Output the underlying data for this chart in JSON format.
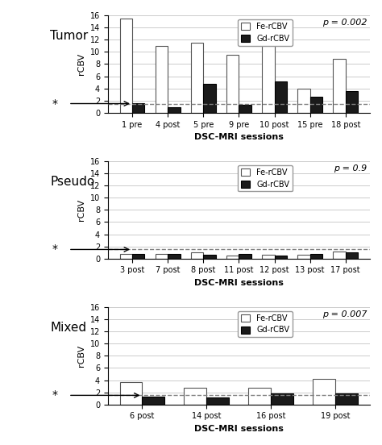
{
  "tumor": {
    "categories": [
      "1 pre",
      "4 post",
      "5 pre",
      "9 pre",
      "10 post",
      "15 pre",
      "18 post"
    ],
    "fe_rcbv": [
      15.5,
      11.0,
      11.5,
      9.5,
      11.5,
      4.0,
      8.8
    ],
    "gd_rcbv": [
      1.6,
      0.9,
      4.8,
      1.3,
      5.2,
      2.6,
      3.5
    ],
    "p_value": "p = 0.002",
    "label": "Tumor"
  },
  "pseudo": {
    "categories": [
      "3 post",
      "7 post",
      "8 post",
      "11 post",
      "12 post",
      "13 post",
      "17 post"
    ],
    "fe_rcbv": [
      0.7,
      0.75,
      1.0,
      0.55,
      0.6,
      0.6,
      1.1
    ],
    "gd_rcbv": [
      0.7,
      0.8,
      0.6,
      0.7,
      0.5,
      0.75,
      1.0
    ],
    "p_value": "p = 0.9",
    "label": "Pseudo"
  },
  "mixed": {
    "categories": [
      "6 post",
      "14 post",
      "16 post",
      "19 post"
    ],
    "fe_rcbv": [
      3.7,
      2.8,
      2.8,
      4.2
    ],
    "gd_rcbv": [
      1.3,
      1.1,
      1.8,
      1.8
    ],
    "p_value": "p = 0.007",
    "label": "Mixed"
  },
  "ylim": [
    0,
    16
  ],
  "yticks": [
    0,
    2,
    4,
    6,
    8,
    10,
    12,
    14,
    16
  ],
  "dashed_line_y": 1.5,
  "bar_width": 0.35,
  "fe_color": "#ffffff",
  "gd_color": "#1a1a1a",
  "fe_edge": "#555555",
  "gd_edge": "#000000",
  "ylabel": "rCBV",
  "xlabel": "DSC-MRI sessions",
  "legend_fe": "Fe-rCBV",
  "legend_gd": "Gd-rCBV",
  "fig_bg": "#ffffff",
  "grid_color": "#cccccc"
}
